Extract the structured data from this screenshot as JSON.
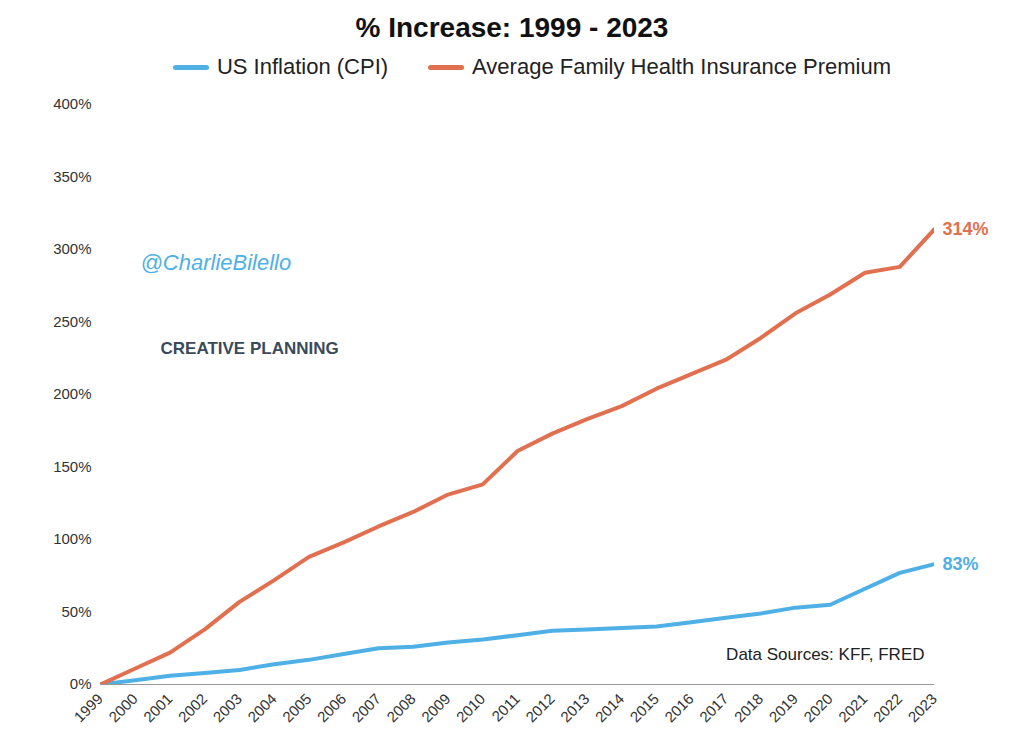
{
  "chart_data": {
    "type": "line",
    "title": "% Increase: 1999 - 2023",
    "x": [
      1999,
      2000,
      2001,
      2002,
      2003,
      2004,
      2005,
      2006,
      2007,
      2008,
      2009,
      2010,
      2011,
      2012,
      2013,
      2014,
      2015,
      2016,
      2017,
      2018,
      2019,
      2020,
      2021,
      2022,
      2023
    ],
    "series": [
      {
        "name": "US Inflation (CPI)",
        "color": "#4fb0e6",
        "values": [
          0,
          3,
          6,
          8,
          10,
          14,
          17,
          21,
          25,
          26,
          29,
          31,
          34,
          37,
          38,
          39,
          40,
          43,
          46,
          49,
          53,
          55,
          66,
          77,
          83
        ],
        "end_label": "83%"
      },
      {
        "name": "Average Family Health Insurance Premium",
        "color": "#e0704f",
        "values": [
          0,
          11,
          22,
          38,
          57,
          72,
          88,
          98,
          109,
          119,
          131,
          138,
          161,
          173,
          183,
          192,
          204,
          214,
          224,
          239,
          256,
          269,
          284,
          288,
          314
        ],
        "end_label": "314%"
      }
    ],
    "xlim": [
      1999,
      2023
    ],
    "xticks": [
      1999,
      2000,
      2001,
      2002,
      2003,
      2004,
      2005,
      2006,
      2007,
      2008,
      2009,
      2010,
      2011,
      2012,
      2013,
      2014,
      2015,
      2016,
      2017,
      2018,
      2019,
      2020,
      2021,
      2022,
      2023
    ],
    "ylim": [
      0,
      400
    ],
    "yticks": [
      {
        "value": 0,
        "label": "0%"
      },
      {
        "value": 50,
        "label": "50%"
      },
      {
        "value": 100,
        "label": "100%"
      },
      {
        "value": 150,
        "label": "150%"
      },
      {
        "value": 200,
        "label": "200%"
      },
      {
        "value": 250,
        "label": "250%"
      },
      {
        "value": 300,
        "label": "300%"
      },
      {
        "value": 350,
        "label": "350%"
      },
      {
        "value": 400,
        "label": "400%"
      }
    ],
    "grid": false,
    "legend": "top",
    "annotations": [
      "@CharlieBilello",
      "CREATIVE PLANNING",
      "Data Sources: KFF, FRED"
    ]
  }
}
